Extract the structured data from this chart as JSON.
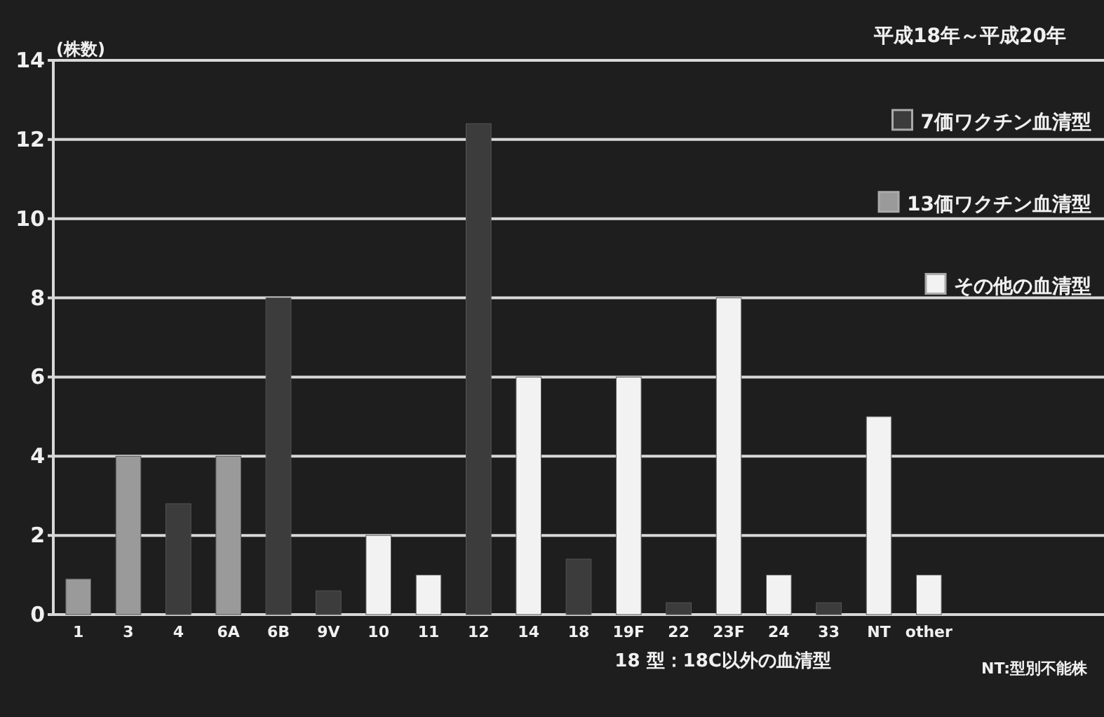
{
  "chart_data": {
    "type": "bar",
    "title": "平成18年～平成20年",
    "ylabel": "(株数)",
    "categories": [
      "1",
      "3",
      "4",
      "6A",
      "6B",
      "9V",
      "10",
      "11",
      "12",
      "14",
      "18",
      "19F",
      "22",
      "23F",
      "24",
      "33",
      "NT",
      "other"
    ],
    "series": [
      {
        "name": "7価ワクチン血清型",
        "color": "#3c3c3c",
        "values": [
          null,
          null,
          2.8,
          null,
          8,
          0.6,
          null,
          null,
          12.4,
          null,
          1.4,
          null,
          0.3,
          null,
          null,
          0.3,
          null,
          null
        ]
      },
      {
        "name": "13価ワクチン血清型",
        "color": "#9a9a9a",
        "values": [
          0.9,
          4,
          null,
          4,
          null,
          null,
          null,
          null,
          null,
          null,
          null,
          null,
          null,
          null,
          null,
          null,
          null,
          null
        ]
      },
      {
        "name": "その他の血清型",
        "color": "#f2f2f2",
        "values": [
          null,
          null,
          null,
          null,
          null,
          null,
          2,
          1,
          null,
          6,
          null,
          6,
          null,
          8,
          1,
          null,
          5,
          1
        ]
      }
    ],
    "ylim": [
      0,
      14
    ],
    "yticks": [
      0,
      2,
      4,
      6,
      8,
      10,
      12,
      14
    ],
    "grid": "y",
    "legend": "right",
    "annotations": [
      "18 型：18C以外の血清型",
      "NT:型別不能株"
    ]
  }
}
